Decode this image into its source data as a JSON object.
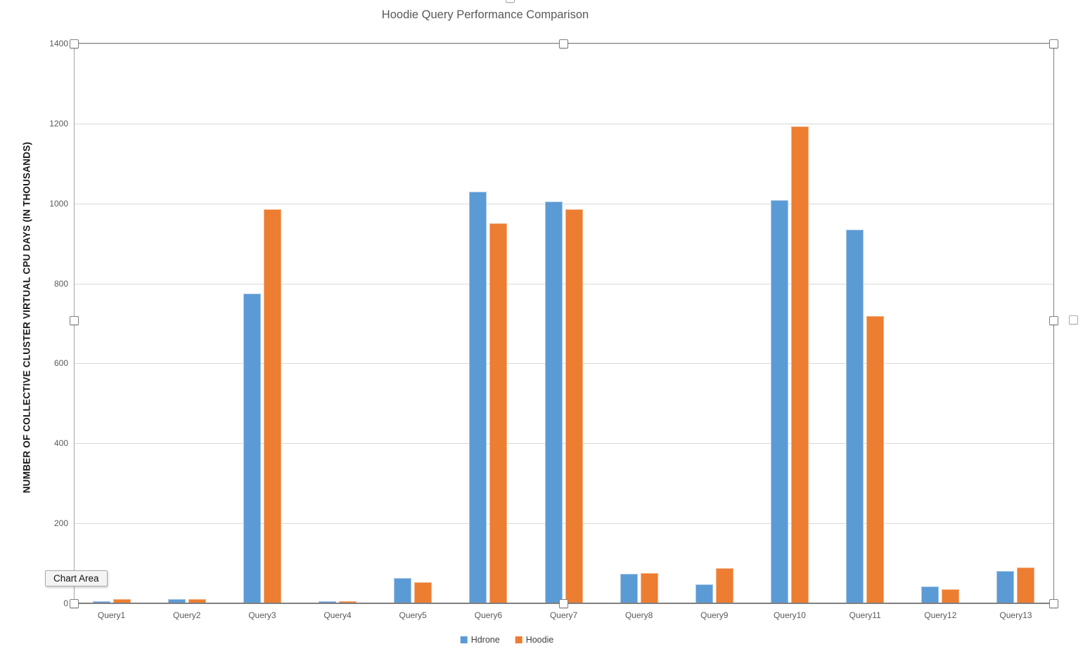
{
  "header": {
    "title": "Hoodie Query Performance Comparison"
  },
  "tooltip": {
    "label": "Chart Area"
  },
  "chart_data": {
    "type": "bar",
    "title": "Hoodie Query Performance Comparison",
    "xlabel": "",
    "ylabel": "NUMBER OF COLLECTIVE CLUSTER VIRTUAL CPU DAYS (IN THOUSANDS)",
    "ylim": [
      0,
      1400
    ],
    "ytick_interval": 200,
    "yticks": [
      0,
      200,
      400,
      600,
      800,
      1000,
      1200,
      1400
    ],
    "grid": true,
    "legend_position": "bottom",
    "categories": [
      "Query1",
      "Query2",
      "Query3",
      "Query4",
      "Query5",
      "Query6",
      "Query7",
      "Query8",
      "Query9",
      "Query10",
      "Query11",
      "Query12",
      "Query13"
    ],
    "series": [
      {
        "name": "Hdrone",
        "color": "#5B9BD5",
        "border_color": "#A9C7E8",
        "values": [
          6,
          10,
          775,
          5,
          64,
          1030,
          1005,
          74,
          48,
          1008,
          935,
          42,
          80
        ]
      },
      {
        "name": "Hoodie",
        "color": "#ED7D31",
        "border_color": "#F4B183",
        "values": [
          11,
          10,
          985,
          5,
          52,
          950,
          985,
          75,
          87,
          1193,
          718,
          35,
          89
        ]
      }
    ]
  },
  "colors": {
    "title_text": "#595959",
    "axis_text": "#595959",
    "gridline": "#D9D9D9",
    "axis_line": "#7F7F7F",
    "selection_frame": "#808080"
  }
}
